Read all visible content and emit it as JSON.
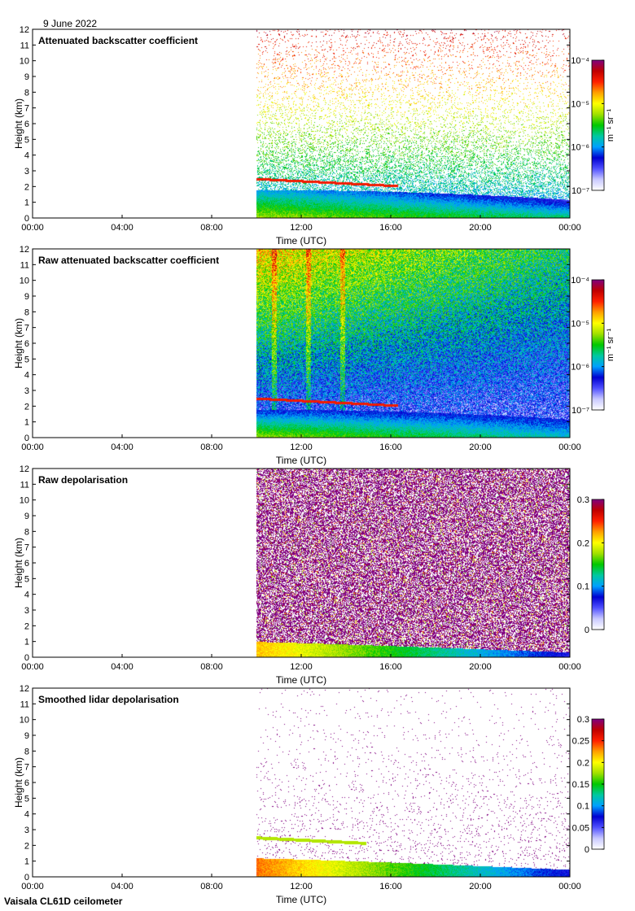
{
  "date_label": "9 June 2022",
  "footer": "Vaisala CL61D ceilometer",
  "colors": {
    "scale": [
      "#ffffff",
      "#c8c8ff",
      "#5050ff",
      "#0000d0",
      "#00a0ff",
      "#00c8a0",
      "#00c800",
      "#a0e000",
      "#ffff00",
      "#ffa000",
      "#ff2000",
      "#c00000",
      "#800080"
    ],
    "frame": "#000000"
  },
  "chart_data": [
    {
      "type": "heatmap",
      "title": "Attenuated backscatter coefficient",
      "xlabel": "Time (UTC)",
      "ylabel": "Height (km)",
      "x_ticks": [
        "00:00",
        "04:00",
        "08:00",
        "12:00",
        "16:00",
        "20:00",
        "00:00"
      ],
      "y_ticks": [
        "0",
        "1",
        "2",
        "3",
        "4",
        "5",
        "6",
        "7",
        "8",
        "9",
        "10",
        "11",
        "12"
      ],
      "ylim": [
        0,
        12
      ],
      "data_start_time": "10:00",
      "colorbar": {
        "scale": "log",
        "range": [
          1e-07,
          0.0001
        ],
        "ticks": [
          "10⁻⁷",
          "10⁻⁶",
          "10⁻⁵",
          "10⁻⁴"
        ],
        "unit": "m⁻¹ sr⁻¹"
      },
      "features": {
        "aerosol_layer_top_km": 1.8,
        "cloud_layer_km": 2.5,
        "pattern": "sparse"
      }
    },
    {
      "type": "heatmap",
      "title": "Raw attenuated backscatter coefficient",
      "xlabel": "Time (UTC)",
      "ylabel": "Height (km)",
      "x_ticks": [
        "00:00",
        "04:00",
        "08:00",
        "12:00",
        "16:00",
        "20:00",
        "00:00"
      ],
      "y_ticks": [
        "0",
        "1",
        "2",
        "3",
        "4",
        "5",
        "6",
        "7",
        "8",
        "9",
        "10",
        "11",
        "12"
      ],
      "ylim": [
        0,
        12
      ],
      "data_start_time": "10:00",
      "colorbar": {
        "scale": "log",
        "range": [
          1e-07,
          0.0001
        ],
        "ticks": [
          "10⁻⁷",
          "10⁻⁶",
          "10⁻⁵",
          "10⁻⁴"
        ],
        "unit": "m⁻¹ sr⁻¹"
      },
      "features": {
        "aerosol_layer_top_km": 1.8,
        "cloud_layer_km": 2.5,
        "pattern": "dense"
      }
    },
    {
      "type": "heatmap",
      "title": "Raw depolarisation",
      "xlabel": "Time (UTC)",
      "ylabel": "Height (km)",
      "x_ticks": [
        "00:00",
        "04:00",
        "08:00",
        "12:00",
        "16:00",
        "20:00",
        "00:00"
      ],
      "y_ticks": [
        "0",
        "1",
        "2",
        "3",
        "4",
        "5",
        "6",
        "7",
        "8",
        "9",
        "10",
        "11",
        "12"
      ],
      "ylim": [
        0,
        12
      ],
      "data_start_time": "10:00",
      "colorbar": {
        "scale": "linear",
        "range": [
          0,
          0.3
        ],
        "ticks": [
          "0",
          "0.1",
          "0.2",
          "0.3"
        ],
        "unit": ""
      },
      "features": {
        "aerosol_layer_top_km": 1.0,
        "pattern": "noise"
      }
    },
    {
      "type": "heatmap",
      "title": "Smoothed lidar depolarisation",
      "xlabel": "Time (UTC)",
      "ylabel": "Height (km)",
      "x_ticks": [
        "00:00",
        "04:00",
        "08:00",
        "12:00",
        "16:00",
        "20:00",
        "00:00"
      ],
      "y_ticks": [
        "0",
        "1",
        "2",
        "3",
        "4",
        "5",
        "6",
        "7",
        "8",
        "9",
        "10",
        "11",
        "12"
      ],
      "ylim": [
        0,
        12
      ],
      "data_start_time": "10:00",
      "colorbar": {
        "scale": "linear",
        "range": [
          0,
          0.3
        ],
        "ticks": [
          "0",
          "0.05",
          "0.1",
          "0.15",
          "0.2",
          "0.25",
          "0.3"
        ],
        "unit": ""
      },
      "features": {
        "aerosol_layer_top_km": 1.2,
        "cloud_layer_km": 2.5,
        "pattern": "smoothed"
      }
    }
  ]
}
